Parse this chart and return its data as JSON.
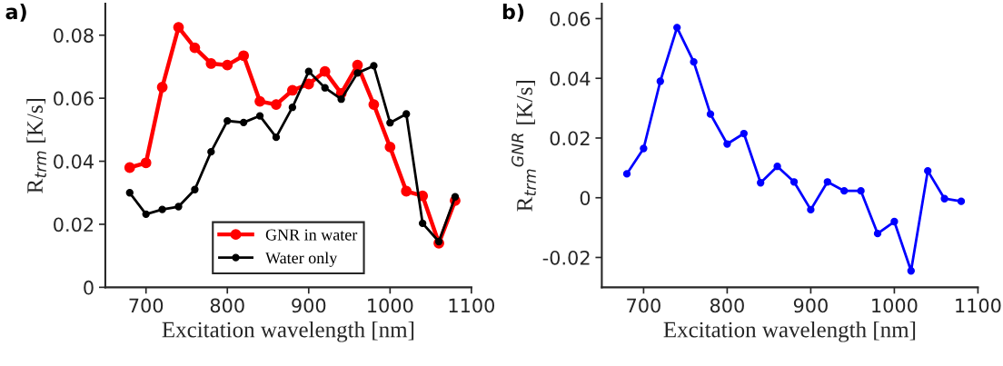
{
  "chart_data": [
    {
      "type": "line",
      "title": "a)",
      "xlabel": "Excitation wavelength [nm]",
      "ylabel": "R$_{trm}$ [K/s]",
      "x": [
        680,
        700,
        720,
        740,
        760,
        780,
        800,
        820,
        840,
        860,
        880,
        900,
        920,
        940,
        960,
        980,
        1000,
        1020,
        1040,
        1060,
        1080
      ],
      "series": [
        {
          "name": "GNR in water",
          "color": "#ff0000",
          "values": [
            0.038,
            0.0395,
            0.0635,
            0.0825,
            0.076,
            0.071,
            0.0705,
            0.0735,
            0.059,
            0.058,
            0.0625,
            0.0645,
            0.0685,
            0.0615,
            0.0705,
            0.058,
            0.0445,
            0.0305,
            0.029,
            0.014,
            0.0275
          ]
        },
        {
          "name": "Water only",
          "color": "#000000",
          "values": [
            0.03,
            0.0232,
            0.0247,
            0.0256,
            0.031,
            0.043,
            0.0528,
            0.0523,
            0.0544,
            0.0476,
            0.0571,
            0.0685,
            0.0633,
            0.0597,
            0.068,
            0.0703,
            0.0522,
            0.055,
            0.0203,
            0.0145,
            0.0287
          ]
        }
      ],
      "xlim": [
        650,
        1100
      ],
      "xticks": [
        700,
        800,
        900,
        1000,
        1100
      ],
      "ylim": [
        0,
        0.09
      ],
      "yticks": [
        0,
        0.02,
        0.04,
        0.06,
        0.08
      ],
      "grid": false,
      "legend": "bottom",
      "marker": "circle",
      "line_style": "solid"
    },
    {
      "type": "line",
      "title": "b)",
      "xlabel": "Excitation wavelength [nm]",
      "ylabel": "R$_{trm}$$^{GNR}$ [K/s]",
      "x": [
        680,
        700,
        720,
        740,
        760,
        780,
        800,
        820,
        840,
        860,
        880,
        900,
        920,
        940,
        960,
        980,
        1000,
        1020,
        1040,
        1060,
        1080
      ],
      "series": [
        {
          "color": "#0000ff",
          "values": [
            0.008,
            0.0165,
            0.039,
            0.057,
            0.0455,
            0.028,
            0.018,
            0.0215,
            0.005,
            0.0105,
            0.0053,
            -0.004,
            0.0053,
            0.0023,
            0.0023,
            -0.012,
            -0.008,
            -0.0245,
            0.009,
            -0.0003,
            -0.0012
          ]
        }
      ],
      "xlim": [
        650,
        1100
      ],
      "xticks": [
        700,
        800,
        900,
        1000,
        1100
      ],
      "ylim": [
        -0.03,
        0.065
      ],
      "yticks": [
        {
          "value": -0.02,
          "label": "-0.02"
        },
        0,
        0.02,
        0.04,
        0.06
      ],
      "grid": false,
      "legend": false,
      "marker": "circle",
      "line_style": "solid"
    }
  ]
}
